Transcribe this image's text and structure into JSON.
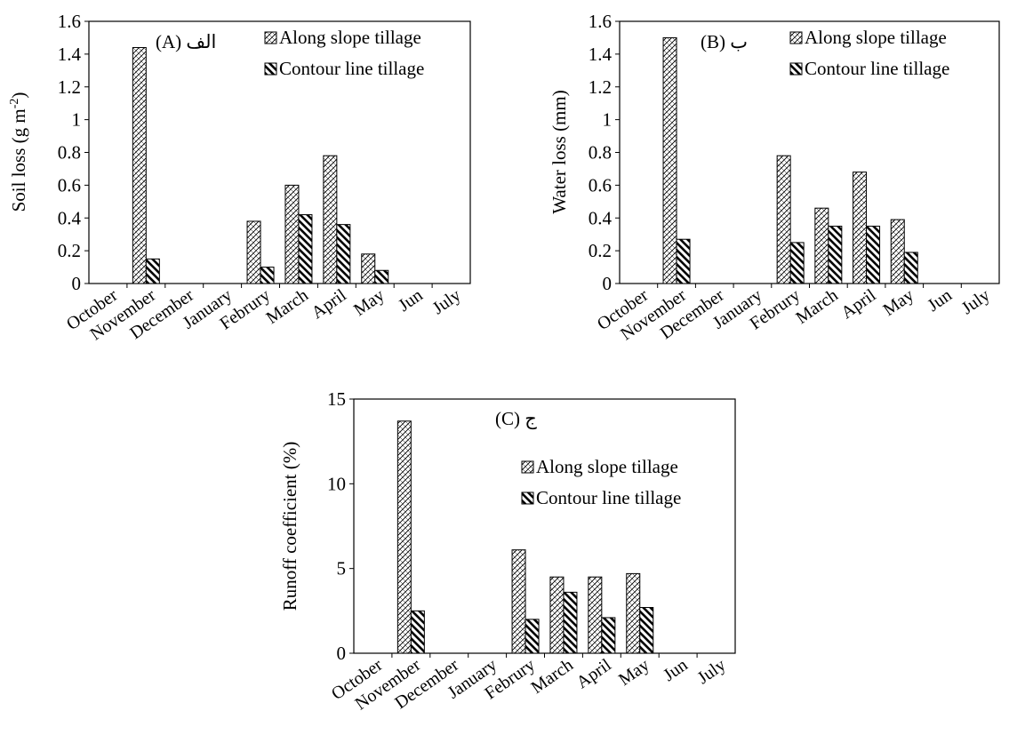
{
  "chart_data": [
    {
      "panel_label": "(A) الف",
      "type": "bar",
      "ylabel": "Soil loss (g m-2)",
      "ylabel_main": "Soil loss (g m",
      "ylabel_sup": "-2",
      "ylabel_tail": ")",
      "ylim": [
        0,
        1.6
      ],
      "yticks": [
        "0",
        "0.2",
        "0.4",
        "0.6",
        "0.8",
        "1",
        "1.2",
        "1.4",
        "1.6"
      ],
      "categories": [
        "October",
        "November",
        "December",
        "January",
        "Februry",
        "March",
        "April",
        "May",
        "Jun",
        "July"
      ],
      "legend_position": "top-right",
      "series": [
        {
          "name": "Along slope tillage",
          "values": [
            0,
            1.44,
            0,
            0,
            0.38,
            0.6,
            0.78,
            0.18,
            0,
            0
          ]
        },
        {
          "name": "Contour line tillage",
          "values": [
            0,
            0.15,
            0,
            0,
            0.1,
            0.42,
            0.36,
            0.08,
            0,
            0
          ]
        }
      ]
    },
    {
      "panel_label": "(B) ب",
      "type": "bar",
      "ylabel": "Water loss (mm)",
      "ylim": [
        0,
        1.6
      ],
      "yticks": [
        "0",
        "0.2",
        "0.4",
        "0.6",
        "0.8",
        "1",
        "1.2",
        "1.4",
        "1.6"
      ],
      "categories": [
        "October",
        "November",
        "December",
        "January",
        "Februry",
        "March",
        "April",
        "May",
        "Jun",
        "July"
      ],
      "legend_position": "top-right",
      "series": [
        {
          "name": "Along slope tillage",
          "values": [
            0,
            1.5,
            0,
            0,
            0.78,
            0.46,
            0.68,
            0.39,
            0,
            0
          ]
        },
        {
          "name": "Contour line tillage",
          "values": [
            0,
            0.27,
            0,
            0,
            0.25,
            0.35,
            0.35,
            0.19,
            0,
            0
          ]
        }
      ]
    },
    {
      "panel_label": "(C) ج",
      "type": "bar",
      "ylabel": "Runoff coefficient (%)",
      "ylim": [
        0,
        15
      ],
      "yticks": [
        "0",
        "5",
        "10",
        "15"
      ],
      "categories": [
        "October",
        "November",
        "December",
        "January",
        "Februry",
        "March",
        "April",
        "May",
        "Jun",
        "July"
      ],
      "legend_position": "right",
      "series": [
        {
          "name": "Along slope tillage",
          "values": [
            0,
            13.7,
            0,
            0,
            6.1,
            4.5,
            4.5,
            4.7,
            0,
            0
          ]
        },
        {
          "name": "Contour line tillage",
          "values": [
            0,
            2.5,
            0,
            0,
            2.0,
            3.6,
            2.1,
            2.7,
            0,
            0
          ]
        }
      ]
    }
  ]
}
